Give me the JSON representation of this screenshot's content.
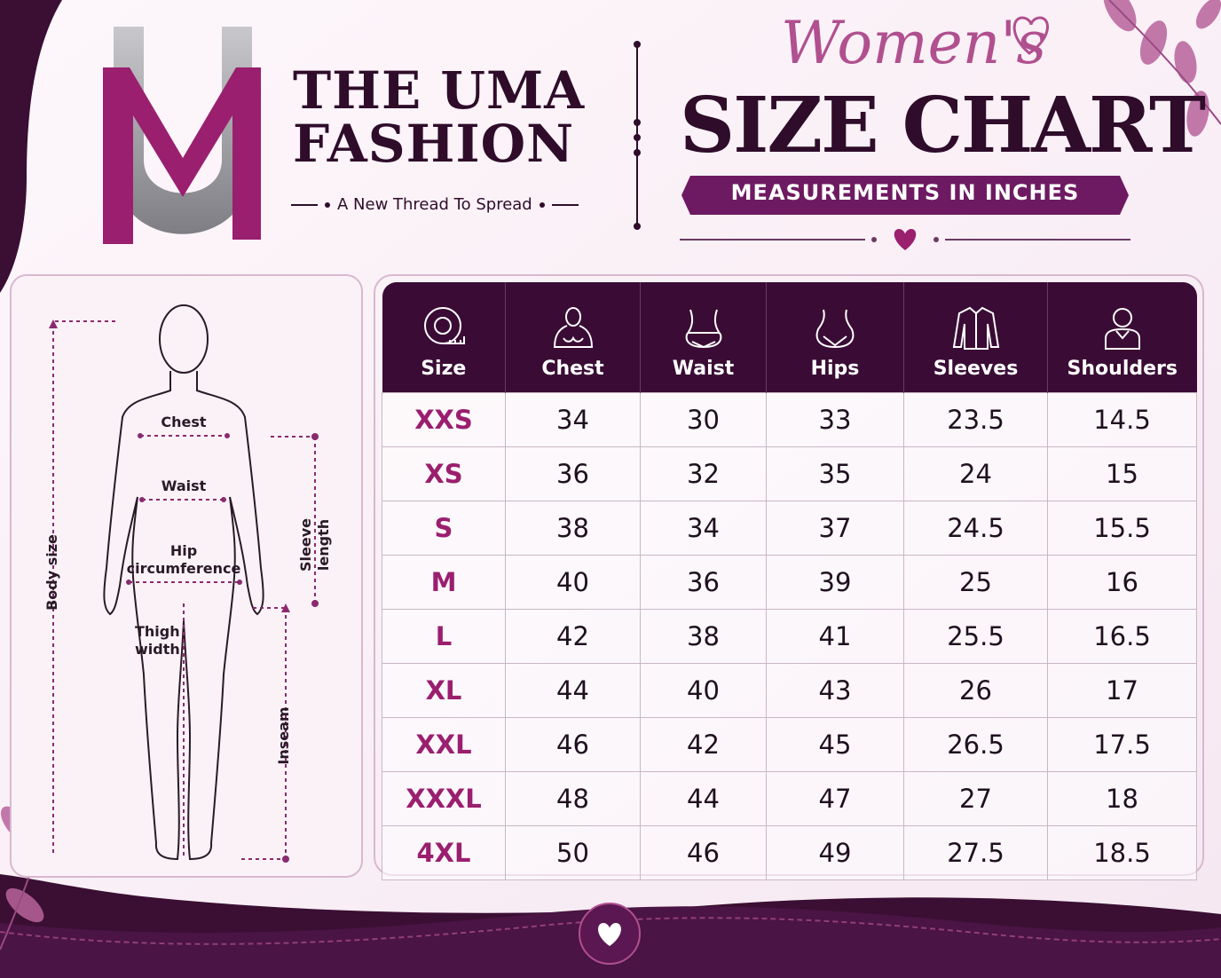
{
  "brand": {
    "line1": "THE UMA",
    "line2": "FASHION",
    "tagline": "A New Thread To Spread",
    "logo_letters": "UM"
  },
  "heading": {
    "script": "Women's",
    "title": "SIZE CHART",
    "subtitle": "MEASUREMENTS IN INCHES"
  },
  "figure_labels": {
    "chest": "Chest",
    "waist": "Waist",
    "hip_line1": "Hip",
    "hip_line2": "circumference",
    "thigh_line1": "Thigh",
    "thigh_line2": "width",
    "sleeve_line1": "Sleeve",
    "sleeve_line2": "length",
    "body_size": "Body size",
    "inseam": "Inseam"
  },
  "table": {
    "headers": [
      "Size",
      "Chest",
      "Waist",
      "Hips",
      "Sleeves",
      "Shoulders"
    ],
    "header_icons": [
      "tape-measure-icon",
      "chest-icon",
      "waist-icon",
      "hips-icon",
      "shirt-sleeves-icon",
      "shoulders-person-icon"
    ],
    "rows": [
      [
        "XXS",
        "34",
        "30",
        "33",
        "23.5",
        "14.5"
      ],
      [
        "XS",
        "36",
        "32",
        "35",
        "24",
        "15"
      ],
      [
        "S",
        "38",
        "34",
        "37",
        "24.5",
        "15.5"
      ],
      [
        "M",
        "40",
        "36",
        "39",
        "25",
        "16"
      ],
      [
        "L",
        "42",
        "38",
        "41",
        "25.5",
        "16.5"
      ],
      [
        "XL",
        "44",
        "40",
        "43",
        "26",
        "17"
      ],
      [
        "XXL",
        "46",
        "42",
        "45",
        "26.5",
        "17.5"
      ],
      [
        "XXXL",
        "48",
        "44",
        "47",
        "27",
        "18"
      ],
      [
        "4XL",
        "50",
        "46",
        "49",
        "27.5",
        "18.5"
      ]
    ]
  },
  "colors": {
    "plum_dark": "#3a0c35",
    "magenta": "#9a1f6f",
    "pink": "#b0508f",
    "paper": "#fbf3f8"
  }
}
